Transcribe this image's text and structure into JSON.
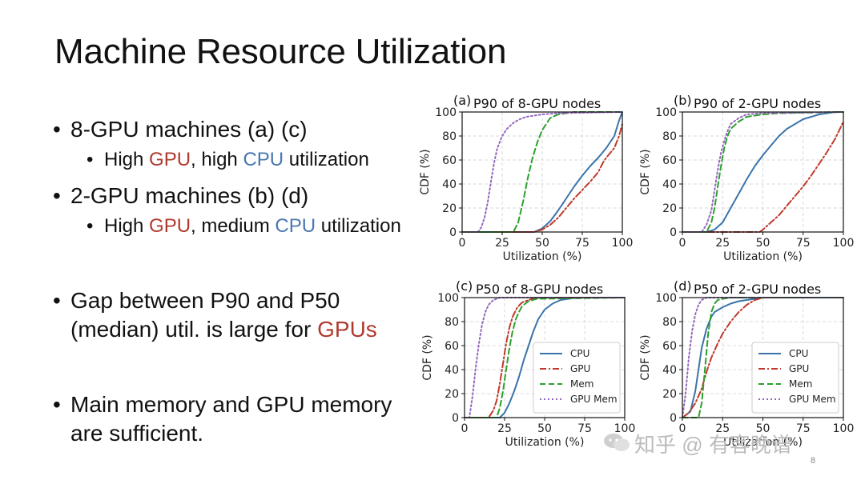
{
  "slide": {
    "title": "Machine Resource Utilization",
    "page_number": "8",
    "watermark": "知乎 @ 有客晚谱"
  },
  "bullets": {
    "b1": "8-GPU machines (a) (c)",
    "b1_sub": {
      "p1": "High ",
      "p2": "GPU",
      "p3": ", high ",
      "p4": "CPU",
      "p5": " utilization"
    },
    "b2": "2-GPU machines (b) (d)",
    "b2_sub": {
      "p1": "High ",
      "p2": "GPU",
      "p3": ", medium ",
      "p4": "CPU",
      "p5": " utilization"
    },
    "b3": {
      "p1": "Gap between P90 and P50 (median) util. is large for ",
      "p2": "GPUs"
    },
    "b4": "Main memory and GPU memory are sufficient."
  },
  "colors": {
    "cpu": "#3a74aa",
    "gpu": "#c0392b",
    "mem": "#2ca02c",
    "gpumem": "#9467bd"
  },
  "chart_data": [
    {
      "type": "line",
      "panel": "(a)",
      "title": "P90 of 8-GPU nodes",
      "xlabel": "Utilization (%)",
      "ylabel": "CDF (%)",
      "xlim": [
        0,
        100
      ],
      "ylim": [
        0,
        100
      ],
      "xticks": [
        "0",
        "25",
        "50",
        "75",
        "100"
      ],
      "yticks": [
        "0",
        "20",
        "40",
        "60",
        "80",
        "100"
      ],
      "grid": true,
      "legend": false,
      "series": [
        {
          "key": "cpu",
          "style": "solid",
          "x": [
            0,
            45,
            50,
            55,
            60,
            65,
            70,
            75,
            80,
            85,
            90,
            95,
            98,
            100
          ],
          "y": [
            0,
            0,
            3,
            9,
            18,
            28,
            38,
            47,
            55,
            62,
            70,
            80,
            93,
            100
          ]
        },
        {
          "key": "gpu",
          "style": "dashdot",
          "x": [
            0,
            45,
            50,
            55,
            60,
            65,
            70,
            75,
            80,
            85,
            88,
            90,
            95,
            98,
            100
          ],
          "y": [
            0,
            0,
            2,
            6,
            12,
            20,
            28,
            35,
            42,
            50,
            58,
            62,
            70,
            80,
            90
          ]
        },
        {
          "key": "mem",
          "style": "dashed",
          "x": [
            0,
            32,
            35,
            38,
            41,
            44,
            47,
            50,
            55,
            60,
            70,
            100
          ],
          "y": [
            0,
            0,
            8,
            25,
            45,
            62,
            75,
            85,
            95,
            98,
            100,
            100
          ]
        },
        {
          "key": "gpumem",
          "style": "dotted",
          "x": [
            0,
            10,
            12,
            14,
            16,
            18,
            20,
            22,
            25,
            28,
            32,
            36,
            40,
            45,
            50,
            60,
            100
          ],
          "y": [
            0,
            0,
            4,
            12,
            25,
            42,
            58,
            70,
            80,
            86,
            91,
            94,
            96,
            97,
            98,
            99,
            100
          ]
        }
      ]
    },
    {
      "type": "line",
      "panel": "(b)",
      "title": "P90 of 2-GPU nodes",
      "xlabel": "Utilization (%)",
      "ylabel": "CDF (%)",
      "xlim": [
        0,
        100
      ],
      "ylim": [
        0,
        100
      ],
      "xticks": [
        "0",
        "25",
        "50",
        "75",
        "100"
      ],
      "yticks": [
        "0",
        "20",
        "40",
        "60",
        "80",
        "100"
      ],
      "grid": true,
      "legend": false,
      "series": [
        {
          "key": "cpu",
          "style": "solid",
          "x": [
            0,
            15,
            20,
            25,
            30,
            35,
            40,
            45,
            50,
            55,
            60,
            65,
            70,
            75,
            80,
            85,
            90,
            95,
            100
          ],
          "y": [
            0,
            0,
            2,
            8,
            20,
            32,
            44,
            55,
            64,
            72,
            80,
            86,
            90,
            94,
            96,
            98,
            99,
            100,
            100
          ]
        },
        {
          "key": "gpu",
          "style": "dashdot",
          "x": [
            0,
            45,
            48,
            50,
            55,
            60,
            65,
            70,
            75,
            80,
            85,
            90,
            95,
            100
          ],
          "y": [
            0,
            0,
            0,
            2,
            8,
            14,
            22,
            30,
            38,
            47,
            57,
            67,
            78,
            92
          ]
        },
        {
          "key": "mem",
          "style": "dashed",
          "x": [
            0,
            15,
            18,
            20,
            22,
            24,
            26,
            28,
            30,
            35,
            40,
            50,
            60,
            100
          ],
          "y": [
            0,
            0,
            8,
            20,
            38,
            55,
            70,
            80,
            86,
            92,
            96,
            98,
            99,
            100
          ]
        },
        {
          "key": "gpumem",
          "style": "dotted",
          "x": [
            0,
            12,
            15,
            18,
            20,
            22,
            24,
            26,
            28,
            30,
            35,
            40,
            50,
            100
          ],
          "y": [
            0,
            0,
            6,
            18,
            35,
            52,
            66,
            76,
            84,
            90,
            95,
            98,
            99,
            100
          ]
        }
      ]
    },
    {
      "type": "line",
      "panel": "(c)",
      "title": "P50 of 8-GPU nodes",
      "xlabel": "Utilization (%)",
      "ylabel": "CDF (%)",
      "xlim": [
        0,
        100
      ],
      "ylim": [
        0,
        100
      ],
      "xticks": [
        "0",
        "25",
        "50",
        "75",
        "100"
      ],
      "yticks": [
        "0",
        "20",
        "40",
        "60",
        "80",
        "100"
      ],
      "grid": true,
      "legend": true,
      "legend_position": "lower-right",
      "series": [
        {
          "key": "cpu",
          "name": "CPU",
          "style": "solid",
          "x": [
            0,
            22,
            25,
            28,
            31,
            34,
            37,
            40,
            43,
            46,
            50,
            55,
            60,
            65,
            70,
            100
          ],
          "y": [
            0,
            0,
            4,
            12,
            22,
            34,
            48,
            60,
            72,
            82,
            90,
            95,
            98,
            99,
            100,
            100
          ]
        },
        {
          "key": "gpu",
          "name": "GPU",
          "style": "dashdot",
          "x": [
            0,
            15,
            18,
            20,
            22,
            24,
            26,
            28,
            30,
            33,
            36,
            40,
            45,
            100
          ],
          "y": [
            0,
            0,
            6,
            14,
            28,
            45,
            62,
            75,
            84,
            92,
            96,
            98,
            100,
            100
          ]
        },
        {
          "key": "mem",
          "name": "Mem",
          "style": "dashed",
          "x": [
            0,
            20,
            22,
            24,
            26,
            28,
            30,
            32,
            34,
            36,
            40,
            45,
            100
          ],
          "y": [
            0,
            0,
            8,
            22,
            40,
            58,
            72,
            82,
            88,
            93,
            97,
            99,
            100
          ]
        },
        {
          "key": "gpumem",
          "name": "GPU Mem",
          "style": "dotted",
          "x": [
            0,
            3,
            5,
            7,
            9,
            11,
            13,
            15,
            18,
            22,
            100
          ],
          "y": [
            0,
            0,
            18,
            42,
            62,
            78,
            88,
            94,
            98,
            100,
            100
          ]
        }
      ]
    },
    {
      "type": "line",
      "panel": "(d)",
      "title": "P50 of 2-GPU nodes",
      "xlabel": "Utilization (%)",
      "ylabel": "CDF (%)",
      "xlim": [
        0,
        100
      ],
      "ylim": [
        0,
        100
      ],
      "xticks": [
        "0",
        "25",
        "50",
        "75",
        "100"
      ],
      "yticks": [
        "0",
        "20",
        "40",
        "60",
        "80",
        "100"
      ],
      "grid": true,
      "legend": true,
      "legend_position": "lower-right",
      "series": [
        {
          "key": "cpu",
          "name": "CPU",
          "style": "solid",
          "x": [
            0,
            5,
            8,
            10,
            12,
            15,
            18,
            20,
            25,
            30,
            35,
            40,
            45,
            50,
            60,
            100
          ],
          "y": [
            0,
            5,
            22,
            40,
            58,
            74,
            84,
            88,
            92,
            95,
            97,
            98,
            99,
            100,
            100,
            100
          ]
        },
        {
          "key": "gpu",
          "name": "GPU",
          "style": "dashdot",
          "x": [
            0,
            4,
            8,
            12,
            15,
            18,
            22,
            25,
            30,
            35,
            40,
            45,
            50,
            100
          ],
          "y": [
            0,
            4,
            12,
            24,
            38,
            50,
            62,
            70,
            80,
            88,
            94,
            98,
            100,
            100
          ]
        },
        {
          "key": "mem",
          "name": "Mem",
          "style": "dashed",
          "x": [
            0,
            10,
            12,
            14,
            16,
            18,
            20,
            22,
            25,
            30,
            100
          ],
          "y": [
            0,
            0,
            12,
            40,
            70,
            88,
            95,
            98,
            99,
            100,
            100
          ]
        },
        {
          "key": "gpumem",
          "name": "GPU Mem",
          "style": "dotted",
          "x": [
            0,
            2,
            4,
            6,
            8,
            10,
            12,
            15,
            20,
            100
          ],
          "y": [
            0,
            20,
            50,
            72,
            86,
            94,
            98,
            100,
            100,
            100
          ]
        }
      ]
    }
  ]
}
